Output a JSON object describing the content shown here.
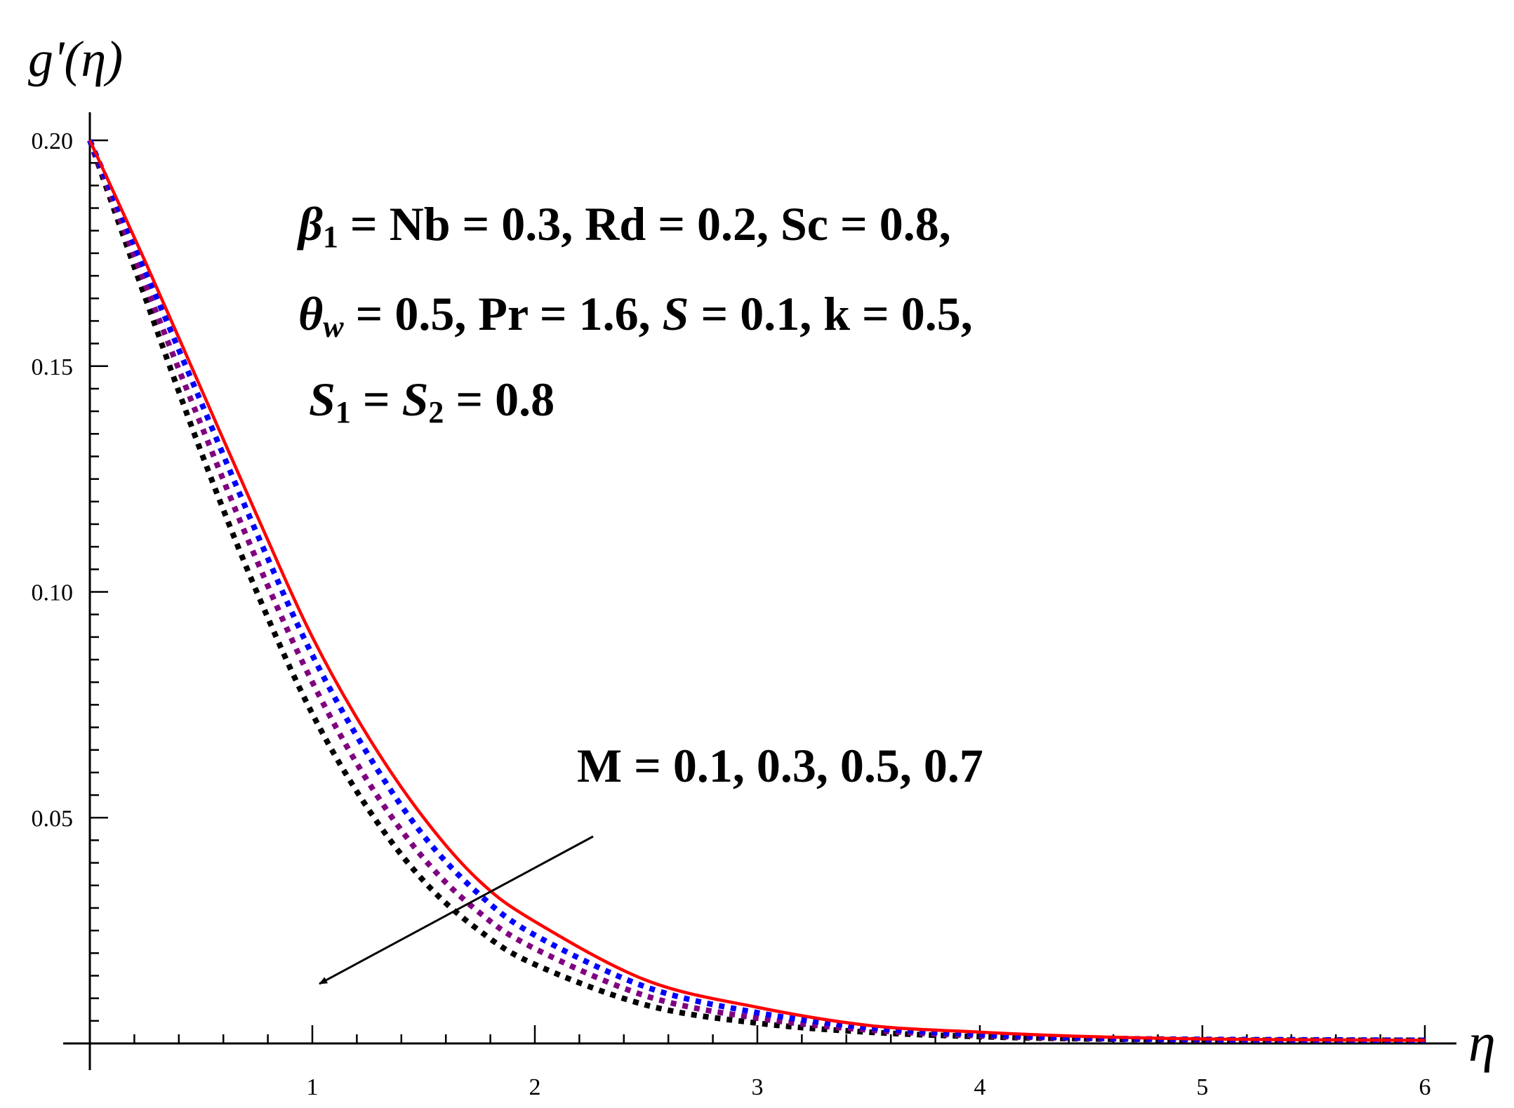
{
  "chart_data": {
    "type": "line",
    "title": "",
    "xlabel": "η",
    "ylabel": "g'(η)",
    "xlim": [
      0,
      6
    ],
    "ylim": [
      0,
      0.2
    ],
    "x_ticks": [
      "1",
      "2",
      "3",
      "4",
      "5",
      "6"
    ],
    "y_ticks": [
      "0.05",
      "0.10",
      "0.15",
      "0.20"
    ],
    "grid": false,
    "series": [
      {
        "name": "M = 0.1",
        "color": "#ff0000",
        "style": "solid",
        "x": [
          0,
          0.25,
          0.5,
          0.75,
          1,
          1.25,
          1.5,
          1.75,
          2,
          2.5,
          3,
          3.5,
          4,
          4.5,
          5,
          5.5,
          6
        ],
        "y": [
          0.2,
          0.173,
          0.145,
          0.117,
          0.09,
          0.068,
          0.05,
          0.036,
          0.027,
          0.014,
          0.008,
          0.004,
          0.0025,
          0.0015,
          0.001,
          0.0008,
          0.0007
        ]
      },
      {
        "name": "M = 0.3",
        "color": "#0000ff",
        "style": "dotted",
        "x": [
          0,
          0.25,
          0.5,
          0.75,
          1,
          1.25,
          1.5,
          1.75,
          2,
          2.5,
          3,
          3.5,
          4,
          4.5,
          5,
          5.5,
          6
        ],
        "y": [
          0.2,
          0.171,
          0.142,
          0.113,
          0.086,
          0.064,
          0.046,
          0.033,
          0.024,
          0.0125,
          0.0068,
          0.0035,
          0.002,
          0.0012,
          0.0009,
          0.0008,
          0.0007
        ]
      },
      {
        "name": "M = 0.5",
        "color": "#800080",
        "style": "dotted",
        "x": [
          0,
          0.25,
          0.5,
          0.75,
          1,
          1.25,
          1.5,
          1.75,
          2,
          2.5,
          3,
          3.5,
          4,
          4.5,
          5,
          5.5,
          6
        ],
        "y": [
          0.2,
          0.168,
          0.137,
          0.107,
          0.08,
          0.058,
          0.041,
          0.029,
          0.021,
          0.0105,
          0.0056,
          0.003,
          0.0017,
          0.0011,
          0.0008,
          0.0007,
          0.0007
        ]
      },
      {
        "name": "M = 0.7",
        "color": "#000000",
        "style": "dotted",
        "x": [
          0,
          0.25,
          0.5,
          0.75,
          1,
          1.25,
          1.5,
          1.75,
          2,
          2.5,
          3,
          3.5,
          4,
          4.5,
          5,
          5.5,
          6
        ],
        "y": [
          0.2,
          0.165,
          0.131,
          0.1,
          0.073,
          0.052,
          0.036,
          0.025,
          0.0175,
          0.0085,
          0.0045,
          0.0025,
          0.0015,
          0.001,
          0.0008,
          0.0007,
          0.0007
        ]
      }
    ],
    "annotations": {
      "param_line1": "β1 = Nb = 0.3,  Rd = 0.2,  Sc =  0.8,",
      "param_line2": "θw =  0.5,  Pr = 1.6,  S = 0.1,  k =  0.5,",
      "param_line3": "S1 = S2  = 0.8",
      "arrow_label": "M =  0.1, 0.3, 0.5, 0.7"
    }
  },
  "text": {
    "l1a_sym": "β",
    "l1a_sub": "1",
    "l1b": " = Nb = 0.3,  Rd = 0.2,  Sc =  0.8,",
    "l2a_sym": "θ",
    "l2a_sub": "w",
    "l2b": " =  0.5,  Pr = 1.6,  ",
    "l2c_sym": "S",
    "l2d": " = 0.1,  k =  0.5,",
    "l3a_sym": "S",
    "l3a_sub": "1",
    "l3b": " = ",
    "l3c_sym": "S",
    "l3c_sub": "2",
    "l3d": "  = 0.8"
  }
}
